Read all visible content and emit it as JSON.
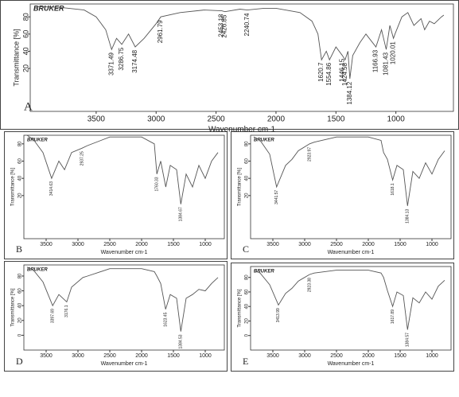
{
  "chart_data": [
    {
      "type": "line",
      "label": "A",
      "logo": "BRUKER",
      "x_label": "Wavenumber cm-1",
      "y_label": "Transmittance [%]",
      "color": "#555555",
      "xlim": [
        4050,
        520
      ],
      "xticks": [
        3500,
        3000,
        2500,
        2000,
        1500,
        1000
      ],
      "ylim": [
        -30,
        95
      ],
      "yticks": [
        20,
        40,
        60,
        80
      ],
      "x": [
        4000,
        3800,
        3600,
        3500,
        3420,
        3371,
        3330,
        3286,
        3230,
        3174,
        3100,
        3000,
        2961,
        2800,
        2600,
        2453,
        2426,
        2300,
        2240,
        2100,
        2000,
        1800,
        1700,
        1650,
        1620,
        1580,
        1554,
        1500,
        1446,
        1424,
        1400,
        1384,
        1360,
        1300,
        1250,
        1166,
        1120,
        1081,
        1050,
        1020,
        1008,
        950,
        900,
        850,
        790,
        760,
        720,
        680,
        620,
        600
      ],
      "values": [
        92,
        91,
        88,
        80,
        65,
        42,
        55,
        48,
        60,
        45,
        55,
        72,
        80,
        85,
        88,
        87,
        86,
        89,
        88,
        90,
        90,
        85,
        75,
        60,
        30,
        40,
        30,
        45,
        35,
        30,
        40,
        8,
        35,
        50,
        60,
        45,
        65,
        42,
        70,
        55,
        60,
        80,
        85,
        70,
        78,
        65,
        75,
        72,
        80,
        82
      ],
      "peaks": [
        3371.49,
        3286.75,
        3174.48,
        2961.79,
        2453.18,
        2426.85,
        2240.74,
        1620.7,
        1554.86,
        1446.15,
        1424.58,
        1384.12,
        1166.93,
        1081.43,
        1020.01
      ]
    },
    {
      "type": "line",
      "label": "B",
      "logo": "BRUKER",
      "x_label": "Wavenumber cm-1",
      "y_label": "Transmittance [%]",
      "color": "#555555",
      "xlim": [
        3850,
        700
      ],
      "xticks": [
        3500,
        3000,
        2500,
        2000,
        1500,
        1000
      ],
      "ylim": [
        -30,
        90
      ],
      "yticks": [
        20,
        40,
        60,
        80
      ],
      "x": [
        3800,
        3700,
        3550,
        3414,
        3300,
        3211,
        3100,
        2937,
        2850,
        2500,
        2000,
        1800,
        1760,
        1700,
        1620,
        1550,
        1450,
        1384,
        1300,
        1200,
        1100,
        1000,
        900,
        800
      ],
      "values": [
        90,
        85,
        70,
        40,
        60,
        50,
        70,
        75,
        78,
        88,
        88,
        80,
        45,
        60,
        30,
        55,
        50,
        10,
        45,
        30,
        55,
        40,
        60,
        70
      ],
      "peaks": [
        3414.63,
        2937.25,
        1760.33,
        1384.67
      ]
    },
    {
      "type": "line",
      "label": "C",
      "logo": "BRUKER",
      "x_label": "Wavenumber cm-1",
      "y_label": "Transmittance [%]",
      "color": "#555555",
      "xlim": [
        3850,
        700
      ],
      "xticks": [
        3500,
        3000,
        2500,
        2000,
        1500,
        1000
      ],
      "ylim": [
        -30,
        90
      ],
      "yticks": [
        20,
        40,
        60,
        80
      ],
      "x": [
        3800,
        3700,
        3550,
        3441,
        3300,
        3200,
        3100,
        2923,
        2850,
        2500,
        2000,
        1800,
        1760,
        1700,
        1618,
        1550,
        1450,
        1384,
        1300,
        1200,
        1100,
        1000,
        900,
        800
      ],
      "values": [
        88,
        84,
        68,
        30,
        55,
        62,
        72,
        80,
        82,
        88,
        88,
        84,
        70,
        62,
        38,
        55,
        50,
        8,
        48,
        40,
        58,
        45,
        62,
        72
      ],
      "peaks": [
        3441.57,
        2923.97,
        1618.1,
        1384.13
      ]
    },
    {
      "type": "line",
      "label": "D",
      "logo": "BRUKER",
      "x_label": "Wavenumber cm-1",
      "y_label": "Transmittance [%]",
      "color": "#555555",
      "xlim": [
        3850,
        700
      ],
      "xticks": [
        3500,
        3000,
        2500,
        2000,
        1500,
        1000
      ],
      "ylim": [
        -20,
        95
      ],
      "yticks": [
        0,
        20,
        40,
        60,
        80
      ],
      "x": [
        3800,
        3700,
        3550,
        3397,
        3300,
        3176,
        3100,
        2923,
        2850,
        2500,
        2000,
        1800,
        1760,
        1700,
        1623,
        1550,
        1450,
        1384,
        1300,
        1200,
        1100,
        1000,
        900,
        800
      ],
      "values": [
        92,
        88,
        72,
        40,
        55,
        45,
        65,
        78,
        80,
        90,
        90,
        86,
        80,
        70,
        35,
        55,
        50,
        5,
        50,
        55,
        62,
        60,
        70,
        78
      ],
      "peaks": [
        3397.69,
        3176.1,
        1623.45,
        1384.53
      ]
    },
    {
      "type": "line",
      "label": "E",
      "logo": "BRUKER",
      "x_label": "Wavenumber cm-1",
      "y_label": "Transmittance [%]",
      "color": "#555555",
      "xlim": [
        3850,
        700
      ],
      "xticks": [
        3500,
        3000,
        2500,
        2000,
        1500,
        1000
      ],
      "ylim": [
        -20,
        95
      ],
      "yticks": [
        0,
        20,
        40,
        60,
        80
      ],
      "x": [
        3800,
        3700,
        3550,
        3413,
        3300,
        3200,
        3100,
        2923,
        2850,
        2500,
        2000,
        1800,
        1760,
        1700,
        1617,
        1550,
        1450,
        1384,
        1300,
        1200,
        1100,
        1000,
        900,
        800
      ],
      "values": [
        90,
        86,
        70,
        42,
        58,
        65,
        75,
        84,
        86,
        90,
        90,
        86,
        80,
        62,
        40,
        60,
        55,
        8,
        52,
        45,
        60,
        50,
        68,
        76
      ],
      "peaks": [
        3413.99,
        2923.38,
        1617.89,
        1384.57
      ]
    }
  ]
}
